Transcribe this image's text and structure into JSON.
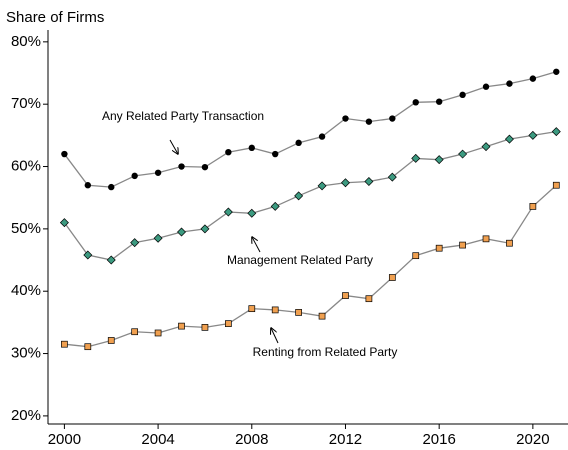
{
  "chart_data": {
    "type": "line",
    "y_label": "Share of Firms",
    "x": [
      2000,
      2001,
      2002,
      2003,
      2004,
      2005,
      2006,
      2007,
      2008,
      2009,
      2010,
      2011,
      2012,
      2013,
      2014,
      2015,
      2016,
      2017,
      2018,
      2019,
      2020,
      2021
    ],
    "series": [
      {
        "name": "Any Related Party Transaction",
        "color": "#000000",
        "marker": "circle",
        "values": [
          62,
          57,
          56.7,
          58.5,
          59,
          60,
          59.9,
          62.3,
          63,
          62,
          63.8,
          64.8,
          67.7,
          67.2,
          67.7,
          70.3,
          70.4,
          71.5,
          72.8,
          73.3,
          74.1,
          75.2
        ]
      },
      {
        "name": "Management Related Party",
        "color": "#3c9a80",
        "marker": "diamond",
        "values": [
          51,
          45.8,
          45,
          47.8,
          48.5,
          49.5,
          50,
          52.7,
          52.5,
          53.6,
          55.3,
          56.9,
          57.4,
          57.6,
          58.3,
          61.3,
          61.1,
          62,
          63.2,
          64.4,
          65,
          65.6
        ]
      },
      {
        "name": "Renting from Related Party",
        "color": "#f0a050",
        "marker": "square",
        "values": [
          31.5,
          31.1,
          32.1,
          33.5,
          33.3,
          34.4,
          34.2,
          34.8,
          37.2,
          37,
          36.6,
          36,
          39.3,
          38.8,
          42.2,
          45.7,
          46.9,
          47.4,
          48.4,
          47.7,
          53.6,
          57
        ]
      }
    ],
    "line_color": "#888888",
    "xlim": [
      1999.3,
      2021.5
    ],
    "xticks": [
      2000,
      2004,
      2008,
      2012,
      2016,
      2020
    ],
    "ylim": [
      18.7,
      81.9
    ],
    "yticks": [
      {
        "value": 20,
        "label": "20%"
      },
      {
        "value": 30,
        "label": "30%"
      },
      {
        "value": 40,
        "label": "40%"
      },
      {
        "value": 50,
        "label": "50%"
      },
      {
        "value": 60,
        "label": "60%"
      },
      {
        "value": 70,
        "label": "70%"
      },
      {
        "value": 80,
        "label": "80%"
      }
    ]
  }
}
